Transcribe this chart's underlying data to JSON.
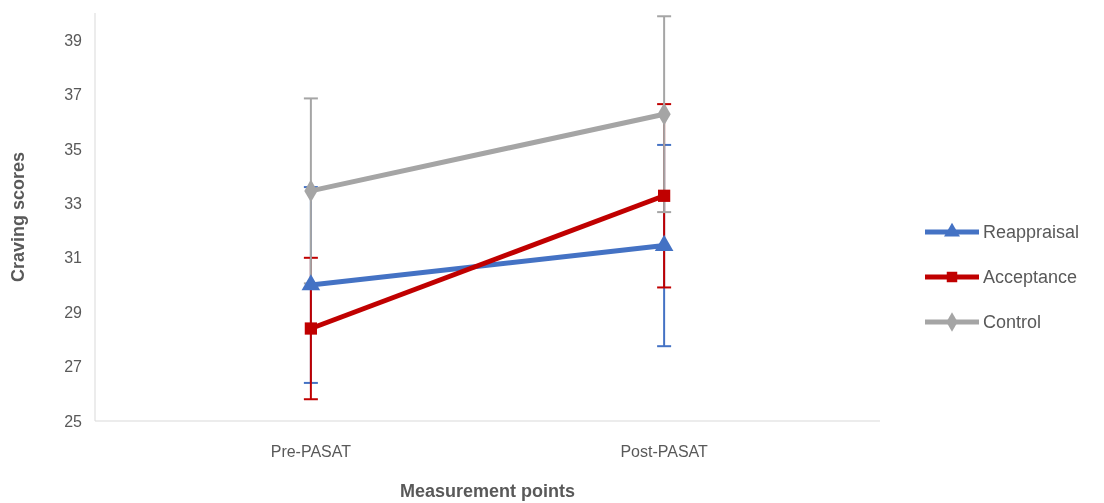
{
  "chart_data": {
    "type": "line",
    "xlabel": "Measurement points",
    "ylabel": "Craving scores",
    "categories": [
      "Pre-PASAT",
      "Post-PASAT"
    ],
    "series": [
      {
        "name": "Reappraisal",
        "color": "#4472c4",
        "marker": "triangle",
        "values": [
          30.0,
          31.45
        ],
        "errors": [
          3.6,
          3.7
        ]
      },
      {
        "name": "Acceptance",
        "color": "#c00000",
        "marker": "square",
        "values": [
          28.4,
          33.28
        ],
        "errors": [
          2.6,
          3.37
        ]
      },
      {
        "name": "Control",
        "color": "#a5a5a5",
        "marker": "diamond",
        "values": [
          33.46,
          36.28
        ],
        "errors": [
          3.4,
          3.6
        ]
      }
    ],
    "ylim": [
      25,
      40
    ],
    "yticks": [
      25,
      27,
      29,
      31,
      33,
      35,
      37,
      39
    ],
    "grid": false,
    "legend": "right"
  }
}
